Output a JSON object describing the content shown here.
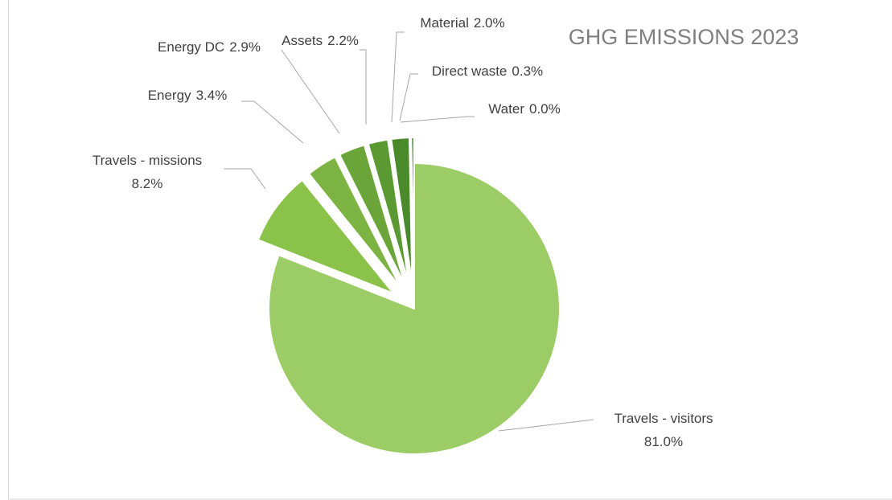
{
  "chart_data": {
    "type": "pie",
    "title": "GHG EMISSIONS 2023",
    "categories": [
      "Travels - visitors",
      "Travels - missions",
      "Energy",
      "Energy DC",
      "Assets",
      "Material",
      "Direct waste",
      "Water"
    ],
    "values": [
      81.0,
      8.2,
      3.4,
      2.9,
      2.2,
      2.0,
      0.3,
      0.0
    ],
    "value_labels": [
      "81.0%",
      "8.2%",
      "3.4%",
      "2.9%",
      "2.2%",
      "2.0%",
      "0.3%",
      "0.0%"
    ],
    "colors": [
      "#9ccc65",
      "#8bc34a",
      "#7cb342",
      "#6ba539",
      "#5b9a32",
      "#4a8a2a",
      "#3c7a22",
      "#2e6b1a"
    ]
  }
}
